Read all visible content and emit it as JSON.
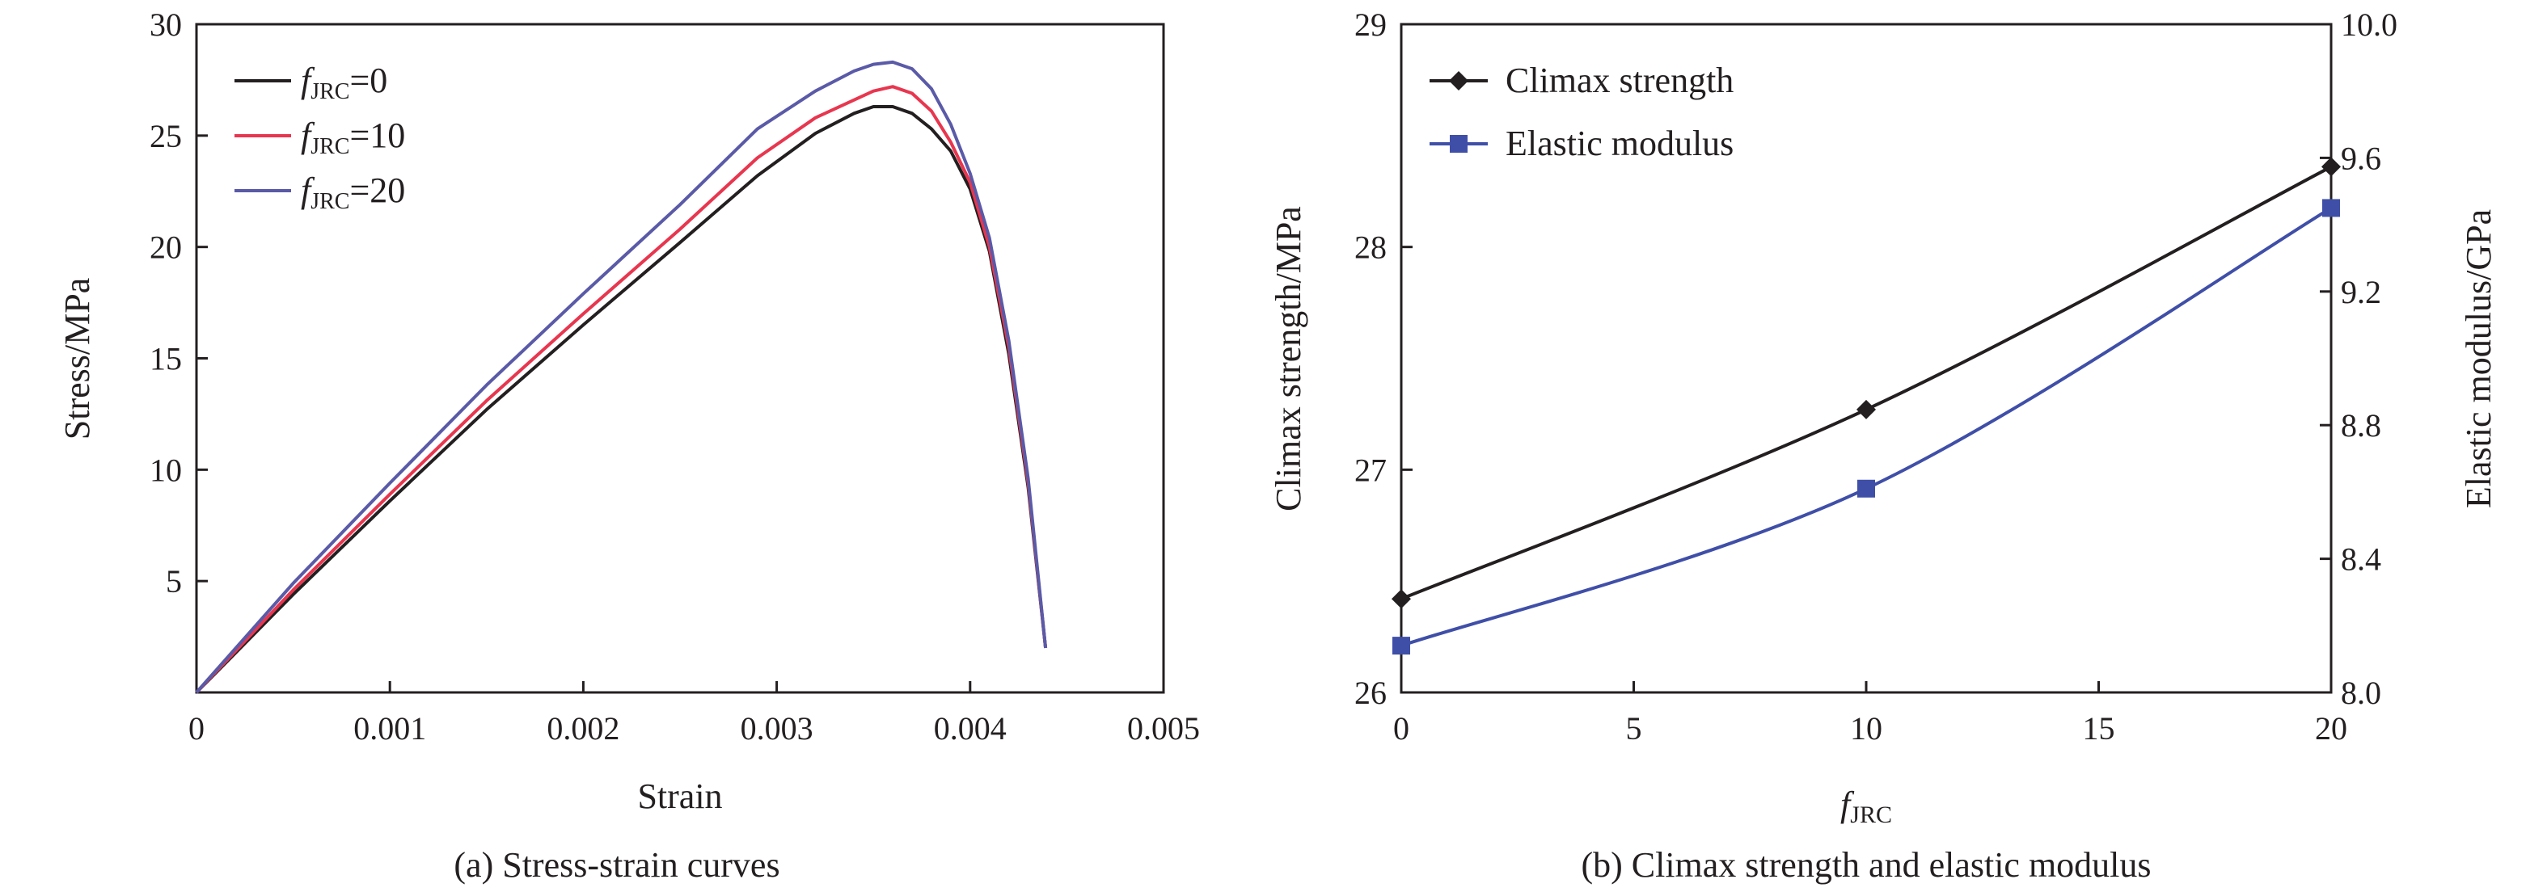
{
  "chart_data": [
    {
      "type": "line",
      "caption": "(a) Stress-strain curves",
      "xlabel": "Strain",
      "ylabel": "Stress/MPa",
      "xlim": [
        0,
        0.005
      ],
      "ylim": [
        0,
        30
      ],
      "xticks": [
        "0",
        "0.001",
        "0.002",
        "0.003",
        "0.004",
        "0.005"
      ],
      "yticks": [
        "5",
        "10",
        "15",
        "20",
        "25",
        "30"
      ],
      "legend": {
        "placement": "top-left",
        "entries": [
          {
            "italic": "f",
            "sub": "JRC",
            "rest": "=0"
          },
          {
            "italic": "f",
            "sub": "JRC",
            "rest": "=10"
          },
          {
            "italic": "f",
            "sub": "JRC",
            "rest": "=20"
          }
        ]
      },
      "colors": [
        "#231f20",
        "#e8364f",
        "#5a5aa8"
      ],
      "series": [
        {
          "name": "fJRC=0",
          "x": [
            0,
            0.0005,
            0.001,
            0.0015,
            0.002,
            0.0025,
            0.0029,
            0.0032,
            0.0034,
            0.0035,
            0.0036,
            0.0037,
            0.0038,
            0.0039,
            0.004,
            0.0041,
            0.0042,
            0.0043,
            0.00439
          ],
          "y": [
            0,
            4.4,
            8.6,
            12.7,
            16.5,
            20.2,
            23.2,
            25.1,
            26.0,
            26.3,
            26.3,
            26.0,
            25.3,
            24.3,
            22.6,
            19.8,
            15.2,
            9.2,
            2.0
          ]
        },
        {
          "name": "fJRC=10",
          "x": [
            0,
            0.0005,
            0.001,
            0.0015,
            0.002,
            0.0025,
            0.0029,
            0.0032,
            0.0034,
            0.0035,
            0.0036,
            0.0037,
            0.0038,
            0.0039,
            0.004,
            0.0041,
            0.0042,
            0.0043,
            0.00439
          ],
          "y": [
            0,
            4.6,
            8.9,
            13.1,
            17.0,
            20.8,
            24.0,
            25.8,
            26.6,
            27.0,
            27.2,
            26.9,
            26.1,
            24.7,
            22.9,
            20.0,
            15.5,
            9.4,
            2.0
          ]
        },
        {
          "name": "fJRC=20",
          "x": [
            0,
            0.0005,
            0.001,
            0.0015,
            0.002,
            0.0025,
            0.0029,
            0.0032,
            0.0034,
            0.0035,
            0.0036,
            0.0037,
            0.0038,
            0.0039,
            0.004,
            0.0041,
            0.0042,
            0.0043,
            0.00439
          ],
          "y": [
            0,
            4.9,
            9.4,
            13.8,
            17.9,
            21.9,
            25.3,
            27.0,
            27.9,
            28.2,
            28.3,
            28.0,
            27.1,
            25.5,
            23.3,
            20.4,
            15.8,
            9.6,
            2.0
          ]
        }
      ]
    },
    {
      "type": "line",
      "caption": "(b) Climax strength and elastic modulus",
      "xlabel": {
        "italic": "f",
        "sub": "JRC"
      },
      "ylabel": "Climax strength/MPa",
      "y2label": "Elastic modulus/GPa",
      "xlim": [
        0,
        20
      ],
      "ylim": [
        26,
        29
      ],
      "y2lim": [
        8.0,
        10.0
      ],
      "xticks": [
        "0",
        "5",
        "10",
        "15",
        "20"
      ],
      "yticks": [
        "26",
        "27",
        "28",
        "29"
      ],
      "y2ticks": [
        "8.0",
        "8.4",
        "8.8",
        "9.2",
        "9.6",
        "10.0"
      ],
      "legend": {
        "placement": "top-left",
        "entries": [
          "Climax strength",
          "Elastic modulus"
        ]
      },
      "colors": [
        "#231f20",
        "#3f4fa8"
      ],
      "series": [
        {
          "name": "Climax strength",
          "axis": "left",
          "marker": "diamond",
          "x": [
            0,
            10,
            20
          ],
          "y": [
            26.42,
            27.27,
            28.36
          ]
        },
        {
          "name": "Elastic modulus",
          "axis": "right",
          "marker": "square",
          "x": [
            0,
            10,
            20
          ],
          "y": [
            8.14,
            8.61,
            9.45
          ]
        }
      ]
    }
  ]
}
